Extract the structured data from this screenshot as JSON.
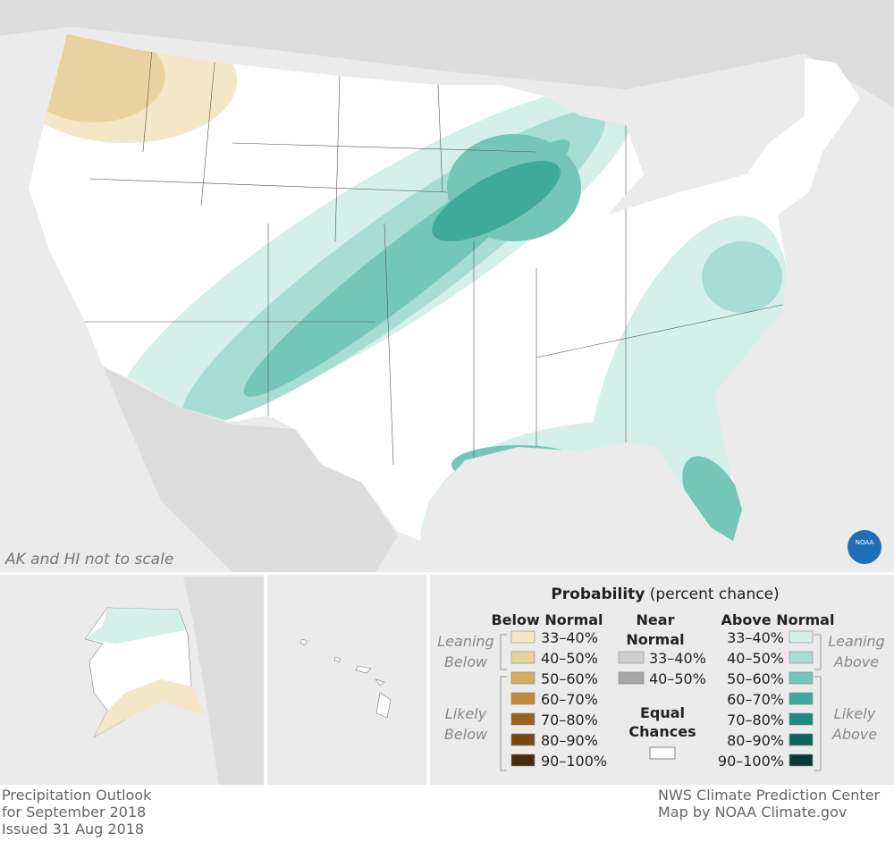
{
  "map": {
    "note": "AK and HI not to scale",
    "logo": "NOAA"
  },
  "legend": {
    "title": "Probability",
    "subtitle": "(percent chance)",
    "below": {
      "heading": "Below Normal",
      "leaning": [
        "Leaning",
        "Below"
      ],
      "likely": [
        "Likely",
        "Below"
      ],
      "items": [
        {
          "label": "33–40%",
          "color": "#f4e7c8"
        },
        {
          "label": "40–50%",
          "color": "#e9d29f"
        },
        {
          "label": "50–60%",
          "color": "#d5ab62"
        },
        {
          "label": "60–70%",
          "color": "#c0893b"
        },
        {
          "label": "70–80%",
          "color": "#9d601b"
        },
        {
          "label": "80–90%",
          "color": "#7a4711"
        },
        {
          "label": "90–100%",
          "color": "#4b2b08"
        }
      ]
    },
    "near": {
      "heading": [
        "Near",
        "Normal"
      ],
      "items": [
        {
          "label": "33–40%",
          "color": "#cfcfcf"
        },
        {
          "label": "40–50%",
          "color": "#a6a6a6"
        }
      ]
    },
    "equal": {
      "heading": [
        "Equal",
        "Chances"
      ],
      "color": "#ffffff"
    },
    "above": {
      "heading": "Above Normal",
      "leaning": [
        "Leaning",
        "Above"
      ],
      "likely": [
        "Likely",
        "Above"
      ],
      "items": [
        {
          "label": "33–40%",
          "color": "#d5efe9"
        },
        {
          "label": "40–50%",
          "color": "#a7ddd3"
        },
        {
          "label": "50–60%",
          "color": "#73c6b8"
        },
        {
          "label": "60–70%",
          "color": "#3fa99a"
        },
        {
          "label": "70–80%",
          "color": "#1f897a"
        },
        {
          "label": "80–90%",
          "color": "#0e6357"
        },
        {
          "label": "90–100%",
          "color": "#053d34"
        }
      ]
    }
  },
  "footer": {
    "left": [
      "Precipitation Outlook",
      "for September 2018",
      "Issued 31 Aug 2018"
    ],
    "right": [
      "NWS Climate Prediction Center",
      "Map by NOAA Climate.gov"
    ]
  }
}
